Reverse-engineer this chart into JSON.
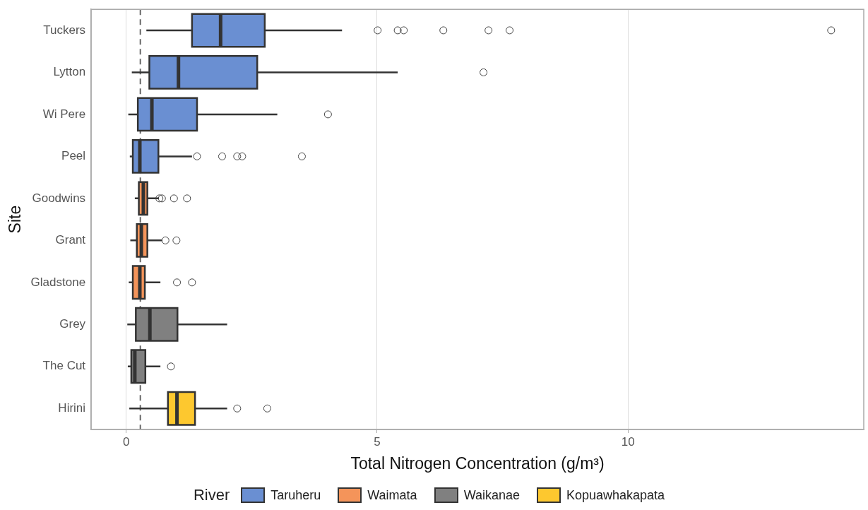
{
  "chart_data": {
    "type": "box",
    "orientation": "horizontal",
    "xlabel": "Total Nitrogen Concentration (g/m³)",
    "ylabel": "Site",
    "legend_title": "River",
    "legend": "bottom",
    "grid": "x",
    "categories": [
      "Tuckers",
      "Lytton",
      "Wi Pere",
      "Peel",
      "Goodwins",
      "Grant",
      "Gladstone",
      "Grey",
      "The Cut",
      "Hirini"
    ],
    "xlim": [
      -0.7,
      14.7
    ],
    "xticks": [
      0,
      5,
      10
    ],
    "ref_lines": [
      {
        "axis": "x",
        "value": 0.28,
        "line_style": "dashed",
        "color": "#666666"
      }
    ],
    "series": [
      {
        "name": "Taruheru",
        "color": "#6a8fd2",
        "boxes": [
          {
            "low": 0.4,
            "q1": 1.31,
            "median": 1.88,
            "q3": 2.76,
            "high": 4.3,
            "outliers": [
              5.01,
              5.41,
              5.53,
              6.32,
              7.22,
              7.64,
              14.05
            ]
          },
          {
            "low": 0.11,
            "q1": 0.46,
            "median": 1.04,
            "q3": 2.61,
            "high": 5.41,
            "outliers": [
              7.12
            ]
          },
          {
            "low": 0.04,
            "q1": 0.23,
            "median": 0.51,
            "q3": 1.41,
            "high": 3.01,
            "outliers": [
              4.02
            ]
          },
          {
            "low": 0.07,
            "q1": 0.13,
            "median": 0.27,
            "q3": 0.64,
            "high": 1.31,
            "outliers": [
              1.41,
              1.91,
              2.21,
              2.31,
              3.5
            ]
          },
          null,
          null,
          null,
          null,
          null,
          null
        ]
      },
      {
        "name": "Waimata",
        "color": "#f4945a",
        "boxes": [
          null,
          null,
          null,
          null,
          {
            "low": 0.17,
            "q1": 0.25,
            "median": 0.34,
            "q3": 0.42,
            "high": 0.65,
            "outliers": [
              0.66,
              0.71,
              0.95,
              1.21
            ]
          },
          {
            "low": 0.08,
            "q1": 0.21,
            "median": 0.3,
            "q3": 0.42,
            "high": 0.72,
            "outliers": [
              0.78,
              1.0
            ]
          },
          {
            "low": 0.05,
            "q1": 0.13,
            "median": 0.27,
            "q3": 0.37,
            "high": 0.68,
            "outliers": [
              1.01,
              1.31
            ]
          },
          null,
          null,
          null
        ]
      },
      {
        "name": "Waikanae",
        "color": "#808080",
        "boxes": [
          null,
          null,
          null,
          null,
          null,
          null,
          null,
          {
            "low": 0.02,
            "q1": 0.19,
            "median": 0.47,
            "q3": 1.02,
            "high": 2.01
          },
          {
            "low": 0.03,
            "q1": 0.1,
            "median": 0.17,
            "q3": 0.38,
            "high": 0.68,
            "outliers": [
              0.89
            ]
          },
          null
        ]
      },
      {
        "name": "Kopuawhakapata",
        "color": "#fdc82f",
        "boxes": [
          null,
          null,
          null,
          null,
          null,
          null,
          null,
          null,
          null,
          {
            "low": 0.06,
            "q1": 0.83,
            "median": 1.01,
            "q3": 1.37,
            "high": 2.01,
            "outliers": [
              2.21,
              2.81
            ]
          }
        ]
      }
    ]
  }
}
